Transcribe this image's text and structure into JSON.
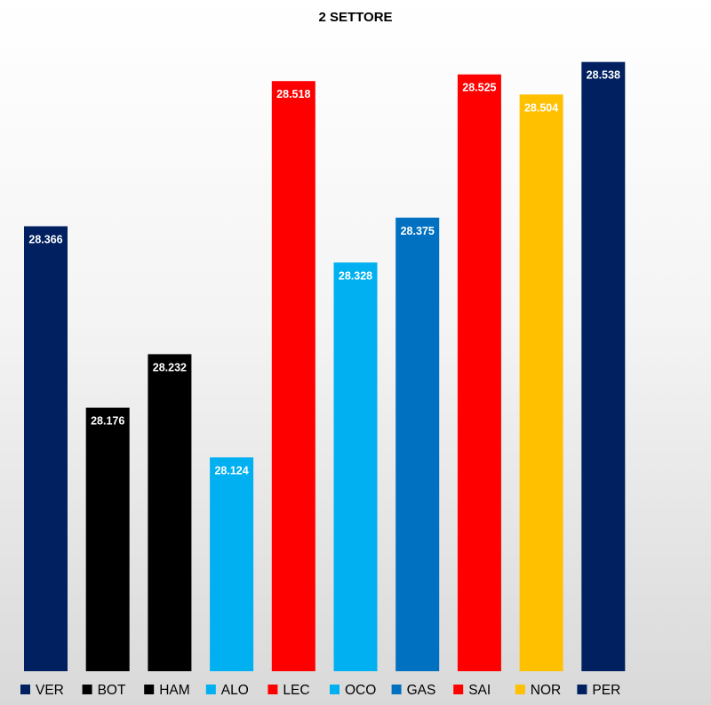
{
  "chart_data": {
    "type": "bar",
    "title": "2 SETTORE",
    "xlabel": "",
    "ylabel": "",
    "categories": [
      "VER",
      "BOT",
      "HAM",
      "ALO",
      "LEC",
      "OCO",
      "GAS",
      "SAI",
      "NOR",
      "PER"
    ],
    "values": [
      28.366,
      28.176,
      28.232,
      28.124,
      28.518,
      28.328,
      28.375,
      28.525,
      28.504,
      28.538
    ],
    "data_labels": [
      "28.366",
      "28.176",
      "28.232",
      "28.124",
      "28.518",
      "28.328",
      "28.375",
      "28.525",
      "28.504",
      "28.538"
    ],
    "colors": [
      "#002060",
      "#000000",
      "#000000",
      "#00b0f0",
      "#ff0000",
      "#00b0f0",
      "#0070c0",
      "#ff0000",
      "#ffc000",
      "#002060"
    ],
    "ylim": [
      27.9,
      28.575
    ],
    "grid": false,
    "legend_position": "bottom"
  }
}
